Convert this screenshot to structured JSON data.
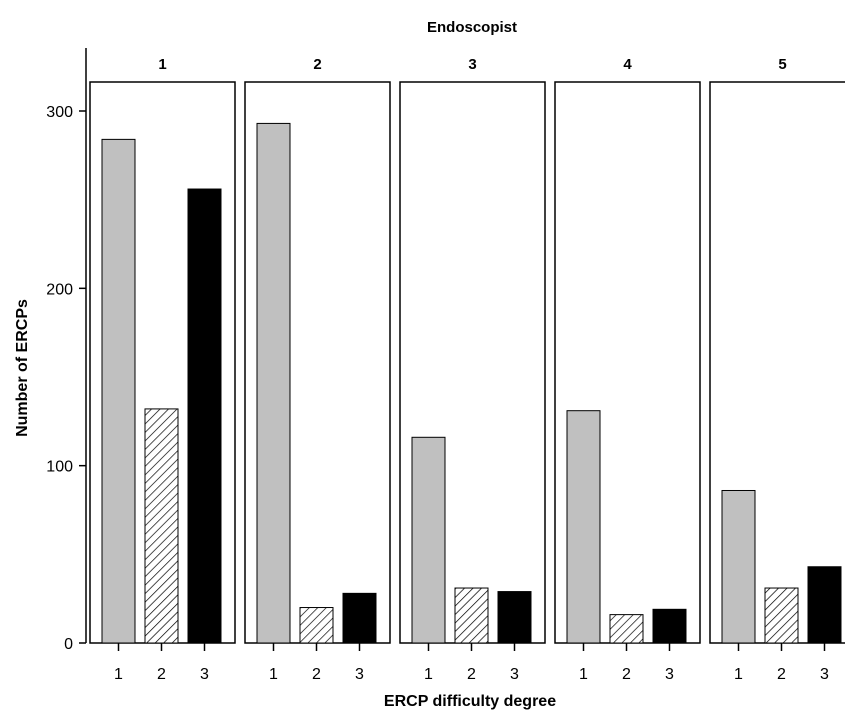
{
  "chart_data": {
    "type": "bar",
    "facet_title": "Endoscopist",
    "xlabel": "ERCP difficulty degree",
    "ylabel": "Number of ERCPs",
    "ylim": [
      0,
      300
    ],
    "yticks": [
      0,
      100,
      200,
      300
    ],
    "categories": [
      "1",
      "2",
      "3"
    ],
    "panels": [
      {
        "label": "1",
        "values": [
          284,
          132,
          256
        ]
      },
      {
        "label": "2",
        "values": [
          293,
          20,
          28
        ]
      },
      {
        "label": "3",
        "values": [
          116,
          31,
          29
        ]
      },
      {
        "label": "4",
        "values": [
          131,
          16,
          19
        ]
      },
      {
        "label": "5",
        "values": [
          86,
          31,
          43
        ]
      }
    ],
    "colors": {
      "degree1": "#c0c0c0",
      "degree2": "hatched",
      "degree3": "#000000"
    },
    "grid": false
  }
}
